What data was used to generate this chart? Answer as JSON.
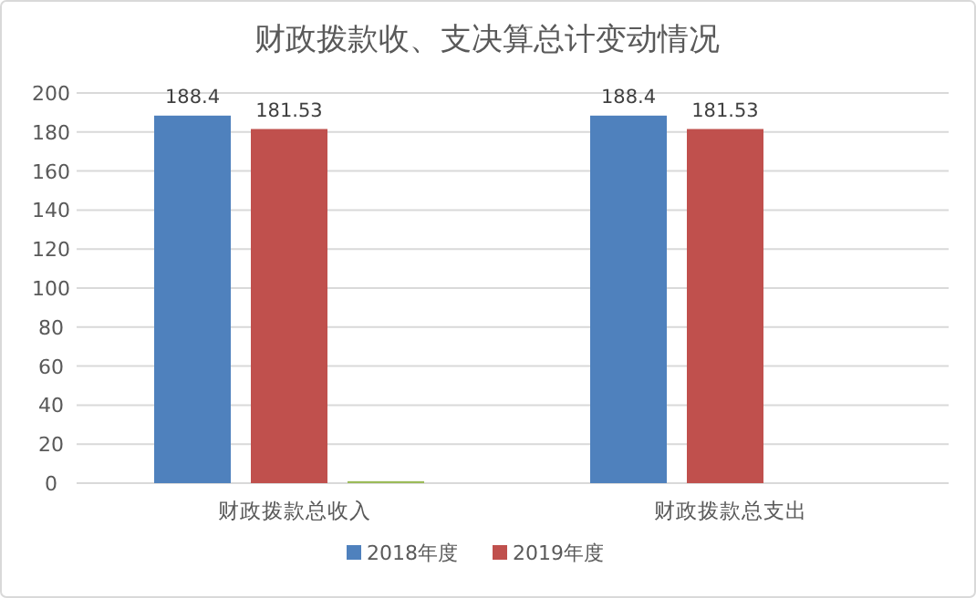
{
  "chart_data": {
    "type": "bar",
    "title": "财政拨款收、支决算总计变动情况",
    "categories": [
      "财政拨款总收入",
      "财政拨款总支出"
    ],
    "series": [
      {
        "name": "2018年度",
        "color": "#4f81bd",
        "values": [
          188.4,
          188.4
        ],
        "value_labels": [
          "188.4",
          "188.4"
        ]
      },
      {
        "name": "2019年度",
        "color": "#c0504d",
        "values": [
          181.53,
          181.53
        ],
        "value_labels": [
          "181.53",
          "181.53"
        ]
      },
      {
        "color": "#9bbb59",
        "values": [
          1,
          null
        ],
        "value_labels": [
          null,
          null
        ]
      }
    ],
    "ylim": [
      0,
      200
    ],
    "yticks": [
      0,
      20,
      40,
      60,
      80,
      100,
      120,
      140,
      160,
      180,
      200
    ],
    "grid": "y",
    "legend": "bottom"
  }
}
